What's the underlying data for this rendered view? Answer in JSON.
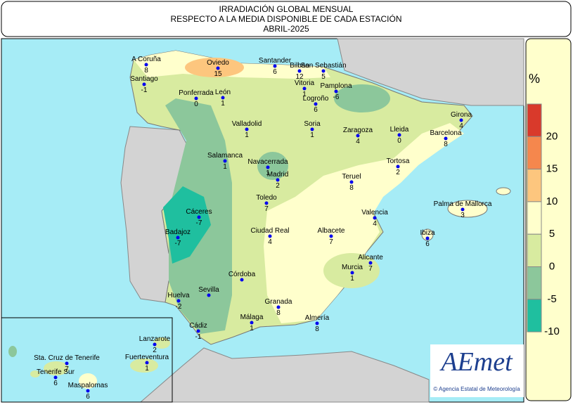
{
  "header": {
    "title": [
      "IRRADIACIÓN GLOBAL MENSUAL",
      "RESPECTO A LA MEDIA DISPONIBLE DE CADA ESTACIÓN",
      "ABRIL-2025"
    ]
  },
  "stations": [
    {
      "name": "A Coruña",
      "value": 8
    },
    {
      "name": "Santiago",
      "value": -1
    },
    {
      "name": "Oviedo",
      "value": 15
    },
    {
      "name": "Santander",
      "value": 6
    },
    {
      "name": "Bilbao",
      "value": 12
    },
    {
      "name": "San Sebastián",
      "value": 5
    },
    {
      "name": "Vitoria",
      "value": 1
    },
    {
      "name": "Pamplona",
      "value": -6
    },
    {
      "name": "Logroño",
      "value": 6
    },
    {
      "name": "Ponferrada",
      "value": 0
    },
    {
      "name": "León",
      "value": 1
    },
    {
      "name": "Girona",
      "value": 4
    },
    {
      "name": "Valladolid",
      "value": 1
    },
    {
      "name": "Soria",
      "value": 1
    },
    {
      "name": "Zaragoza",
      "value": 4
    },
    {
      "name": "Lleida",
      "value": 0
    },
    {
      "name": "Barcelona",
      "value": 8
    },
    {
      "name": "Salamanca",
      "value": 1
    },
    {
      "name": "Navacerrada",
      "value": 1
    },
    {
      "name": "Madrid",
      "value": 2
    },
    {
      "name": "Tortosa",
      "value": 2
    },
    {
      "name": "Teruel",
      "value": 8
    },
    {
      "name": "Toledo",
      "value": 7
    },
    {
      "name": "Cáceres",
      "value": -7
    },
    {
      "name": "Palma de Mallorca",
      "value": 3
    },
    {
      "name": "Valencia",
      "value": 4
    },
    {
      "name": "Badajoz",
      "value": -7
    },
    {
      "name": "Ciudad Real",
      "value": 4
    },
    {
      "name": "Albacete",
      "value": 7
    },
    {
      "name": "Ibiza",
      "value": 6
    },
    {
      "name": "Alicante",
      "value": 7
    },
    {
      "name": "Murcia",
      "value": 1
    },
    {
      "name": "Córdoba"
    },
    {
      "name": "Sevilla"
    },
    {
      "name": "Huelva",
      "value": -2
    },
    {
      "name": "Granada",
      "value": 8
    },
    {
      "name": "Almería",
      "value": 8
    },
    {
      "name": "Cádiz",
      "value": -1
    },
    {
      "name": "Málaga",
      "value": 1
    },
    {
      "name": "Lanzarote",
      "value": 2
    },
    {
      "name": "Sta. Cruz de Tenerife",
      "value": 7
    },
    {
      "name": "Fuerteventura",
      "value": 1
    },
    {
      "name": "Tenerife Sur",
      "value": 6
    },
    {
      "name": "Maspalomas",
      "value": 6
    }
  ],
  "legend": {
    "unit": "%",
    "ticks": [
      20,
      15,
      10,
      5,
      0,
      -5,
      -10
    ],
    "colors": [
      "#d93a2b",
      "#f5874d",
      "#fdc67e",
      "#ffffcc",
      "#d8eba0",
      "#8cc79b",
      "#1fbf9f"
    ]
  },
  "logo": {
    "name": "AEmet",
    "caption": "© Agencia Estatal de Meteorología"
  }
}
